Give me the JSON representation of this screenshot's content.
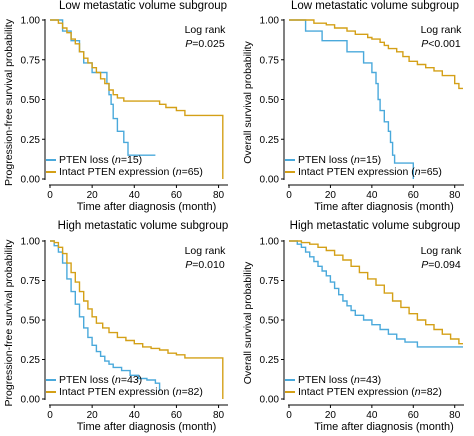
{
  "colors": {
    "pten_loss": "#4aa9db",
    "intact": "#d4a017",
    "axis": "#000000"
  },
  "chart_data": [
    {
      "type": "line",
      "panel_title": "Low metastatic volume subgroup",
      "ylabel": "Progression-free survival probability",
      "xlabel": "Time after diagnosis (month)",
      "xlim": [
        0,
        84
      ],
      "ylim": [
        0,
        1
      ],
      "x_ticks": [
        "0",
        "20",
        "40",
        "60",
        "80"
      ],
      "y_ticks": [
        "0.00",
        "0.25",
        "0.50",
        "0.75",
        "1.00"
      ],
      "stat_line1": "Log rank",
      "stat_line2_prefix": "P",
      "stat_line2_value": "=0.025",
      "legend": [
        {
          "pre": "PTEN loss (",
          "n": "n",
          "post": "=15)"
        },
        {
          "pre": "Intact PTEN expression (",
          "n": "n",
          "post": "=65)"
        }
      ],
      "series": [
        {
          "name": "PTEN loss",
          "steps": [
            [
              0,
              1
            ],
            [
              6,
              0.93
            ],
            [
              10,
              0.87
            ],
            [
              14,
              0.8
            ],
            [
              16,
              0.73
            ],
            [
              20,
              0.67
            ],
            [
              27,
              0.6
            ],
            [
              28,
              0.53
            ],
            [
              29,
              0.47
            ],
            [
              30,
              0.38
            ],
            [
              32,
              0.3
            ],
            [
              35,
              0.23
            ],
            [
              37,
              0.15
            ],
            [
              50,
              0.15
            ]
          ]
        },
        {
          "name": "Intact PTEN expression",
          "steps": [
            [
              0,
              1
            ],
            [
              4,
              0.98
            ],
            [
              6,
              0.95
            ],
            [
              8,
              0.92
            ],
            [
              10,
              0.88
            ],
            [
              12,
              0.85
            ],
            [
              14,
              0.8
            ],
            [
              16,
              0.76
            ],
            [
              18,
              0.73
            ],
            [
              20,
              0.7
            ],
            [
              22,
              0.67
            ],
            [
              24,
              0.63
            ],
            [
              26,
              0.6
            ],
            [
              28,
              0.56
            ],
            [
              30,
              0.53
            ],
            [
              32,
              0.51
            ],
            [
              35,
              0.49
            ],
            [
              50,
              0.49
            ],
            [
              52,
              0.47
            ],
            [
              55,
              0.45
            ],
            [
              60,
              0.43
            ],
            [
              64,
              0.4
            ],
            [
              80,
              0.4
            ],
            [
              82,
              0
            ]
          ]
        }
      ]
    },
    {
      "type": "line",
      "panel_title": "Low metastatic volume subgroup",
      "ylabel": "Overall survival probability",
      "xlabel": "Time after diagnosis (month)",
      "xlim": [
        0,
        84
      ],
      "ylim": [
        0,
        1
      ],
      "x_ticks": [
        "0",
        "20",
        "40",
        "60",
        "80"
      ],
      "y_ticks": [
        "0.00",
        "0.25",
        "0.50",
        "0.75",
        "1.00"
      ],
      "stat_line1": "Log rank",
      "stat_line2_prefix": "P",
      "stat_line2_value": "<0.001",
      "legend": [
        {
          "pre": "PTEN loss (",
          "n": "n",
          "post": "=15)"
        },
        {
          "pre": "Intact PTEN expression (",
          "n": "n",
          "post": "=65)"
        }
      ],
      "series": [
        {
          "name": "PTEN loss",
          "steps": [
            [
              0,
              1
            ],
            [
              8,
              0.93
            ],
            [
              16,
              0.87
            ],
            [
              28,
              0.8
            ],
            [
              36,
              0.73
            ],
            [
              40,
              0.67
            ],
            [
              42,
              0.6
            ],
            [
              43,
              0.5
            ],
            [
              44,
              0.43
            ],
            [
              46,
              0.36
            ],
            [
              48,
              0.3
            ],
            [
              49,
              0.23
            ],
            [
              50,
              0.15
            ],
            [
              51,
              0.1
            ],
            [
              60,
              0
            ]
          ]
        },
        {
          "name": "Intact PTEN expression",
          "steps": [
            [
              0,
              1
            ],
            [
              12,
              0.98
            ],
            [
              18,
              0.97
            ],
            [
              22,
              0.95
            ],
            [
              28,
              0.93
            ],
            [
              32,
              0.91
            ],
            [
              38,
              0.89
            ],
            [
              40,
              0.88
            ],
            [
              44,
              0.86
            ],
            [
              46,
              0.84
            ],
            [
              48,
              0.82
            ],
            [
              52,
              0.8
            ],
            [
              55,
              0.77
            ],
            [
              58,
              0.74
            ],
            [
              62,
              0.72
            ],
            [
              66,
              0.7
            ],
            [
              70,
              0.68
            ],
            [
              74,
              0.65
            ],
            [
              80,
              0.6
            ],
            [
              82,
              0.57
            ],
            [
              84,
              0.57
            ]
          ]
        }
      ]
    },
    {
      "type": "line",
      "panel_title": "High metastatic volume subgroup",
      "ylabel": "Progression-free survival probability",
      "xlabel": "Time after diagnosis (month)",
      "xlim": [
        0,
        84
      ],
      "ylim": [
        0,
        1
      ],
      "x_ticks": [
        "0",
        "20",
        "40",
        "60",
        "80"
      ],
      "y_ticks": [
        "0.00",
        "0.25",
        "0.50",
        "0.75",
        "1.00"
      ],
      "stat_line1": "Log rank",
      "stat_line2_prefix": "P",
      "stat_line2_value": "=0.010",
      "legend": [
        {
          "pre": "PTEN loss (",
          "n": "n",
          "post": "=43)"
        },
        {
          "pre": "Intact PTEN expression (",
          "n": "n",
          "post": "=82)"
        }
      ],
      "series": [
        {
          "name": "PTEN loss",
          "steps": [
            [
              0,
              1
            ],
            [
              2,
              0.97
            ],
            [
              4,
              0.93
            ],
            [
              6,
              0.86
            ],
            [
              8,
              0.76
            ],
            [
              10,
              0.68
            ],
            [
              12,
              0.6
            ],
            [
              14,
              0.52
            ],
            [
              16,
              0.45
            ],
            [
              18,
              0.39
            ],
            [
              20,
              0.34
            ],
            [
              22,
              0.3
            ],
            [
              24,
              0.27
            ],
            [
              26,
              0.24
            ],
            [
              28,
              0.22
            ],
            [
              30,
              0.2
            ],
            [
              34,
              0.18
            ],
            [
              38,
              0.15
            ],
            [
              42,
              0.13
            ],
            [
              46,
              0.12
            ],
            [
              50,
              0.1
            ],
            [
              52,
              0.05
            ]
          ]
        },
        {
          "name": "Intact PTEN expression",
          "steps": [
            [
              0,
              1
            ],
            [
              2,
              0.99
            ],
            [
              4,
              0.96
            ],
            [
              6,
              0.92
            ],
            [
              8,
              0.86
            ],
            [
              10,
              0.8
            ],
            [
              12,
              0.74
            ],
            [
              14,
              0.68
            ],
            [
              16,
              0.62
            ],
            [
              18,
              0.57
            ],
            [
              20,
              0.52
            ],
            [
              22,
              0.48
            ],
            [
              25,
              0.45
            ],
            [
              28,
              0.42
            ],
            [
              32,
              0.39
            ],
            [
              36,
              0.37
            ],
            [
              40,
              0.35
            ],
            [
              44,
              0.33
            ],
            [
              48,
              0.32
            ],
            [
              52,
              0.31
            ],
            [
              56,
              0.29
            ],
            [
              60,
              0.28
            ],
            [
              64,
              0.26
            ],
            [
              80,
              0.26
            ],
            [
              82,
              0
            ]
          ]
        }
      ]
    },
    {
      "type": "line",
      "panel_title": "High metastatic volume subgroup",
      "ylabel": "Overall survival probability",
      "xlabel": "Time after diagnosis (month)",
      "xlim": [
        0,
        84
      ],
      "ylim": [
        0,
        1
      ],
      "x_ticks": [
        "0",
        "20",
        "40",
        "60",
        "80"
      ],
      "y_ticks": [
        "0.00",
        "0.25",
        "0.50",
        "0.75",
        "1.00"
      ],
      "stat_line1": "Log rank",
      "stat_line2_prefix": "P",
      "stat_line2_value": "=0.094",
      "legend": [
        {
          "pre": "PTEN loss (",
          "n": "n",
          "post": "=43)"
        },
        {
          "pre": "Intact PTEN expression (",
          "n": "n",
          "post": "=82)"
        }
      ],
      "series": [
        {
          "name": "PTEN loss",
          "steps": [
            [
              0,
              1
            ],
            [
              4,
              0.98
            ],
            [
              6,
              0.96
            ],
            [
              8,
              0.93
            ],
            [
              10,
              0.9
            ],
            [
              12,
              0.87
            ],
            [
              14,
              0.84
            ],
            [
              16,
              0.81
            ],
            [
              18,
              0.78
            ],
            [
              20,
              0.74
            ],
            [
              22,
              0.7
            ],
            [
              24,
              0.66
            ],
            [
              26,
              0.62
            ],
            [
              28,
              0.59
            ],
            [
              30,
              0.56
            ],
            [
              32,
              0.53
            ],
            [
              36,
              0.5
            ],
            [
              40,
              0.47
            ],
            [
              44,
              0.44
            ],
            [
              48,
              0.41
            ],
            [
              52,
              0.38
            ],
            [
              56,
              0.36
            ],
            [
              62,
              0.33
            ],
            [
              70,
              0.33
            ],
            [
              84,
              0.33
            ]
          ]
        },
        {
          "name": "Intact PTEN expression",
          "steps": [
            [
              0,
              1
            ],
            [
              6,
              0.99
            ],
            [
              10,
              0.98
            ],
            [
              14,
              0.96
            ],
            [
              18,
              0.94
            ],
            [
              22,
              0.91
            ],
            [
              26,
              0.88
            ],
            [
              30,
              0.84
            ],
            [
              34,
              0.8
            ],
            [
              38,
              0.76
            ],
            [
              42,
              0.72
            ],
            [
              46,
              0.67
            ],
            [
              50,
              0.62
            ],
            [
              54,
              0.58
            ],
            [
              58,
              0.54
            ],
            [
              62,
              0.5
            ],
            [
              66,
              0.47
            ],
            [
              70,
              0.44
            ],
            [
              74,
              0.41
            ],
            [
              78,
              0.38
            ],
            [
              82,
              0.35
            ],
            [
              84,
              0.35
            ]
          ]
        }
      ]
    }
  ]
}
